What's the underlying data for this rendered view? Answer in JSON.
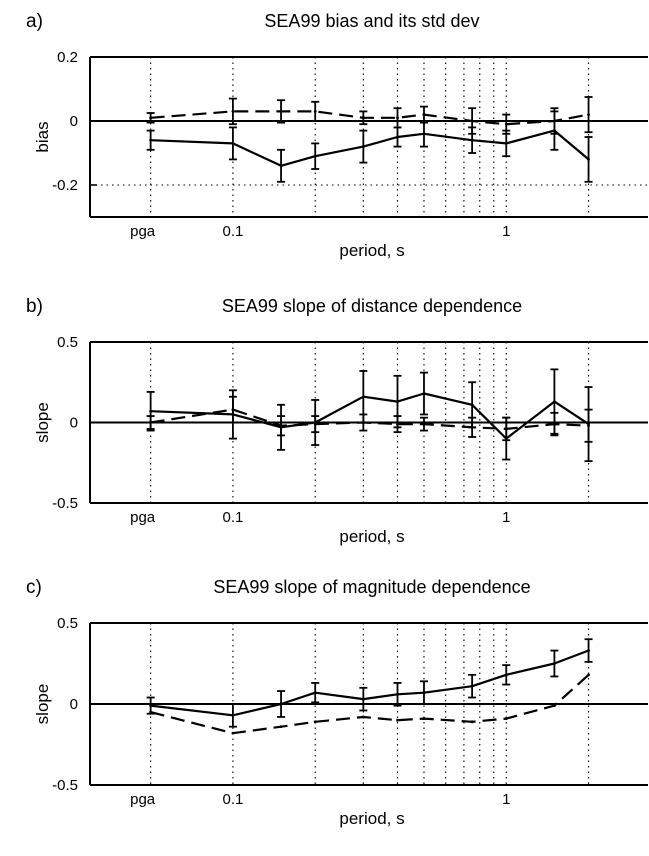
{
  "chart_data": [
    {
      "panel": "a)",
      "type": "line",
      "title": "SEA99 bias and its std dev",
      "xlabel": "period, s",
      "ylabel": "bias",
      "x_scale": "log",
      "xlim": [
        0.03,
        3.3
      ],
      "ylim": [
        -0.3,
        0.2
      ],
      "yticks": [
        0.2,
        0,
        -0.2
      ],
      "ytick_labels": [
        "0.2",
        "0",
        "-0.2"
      ],
      "xtick_labels": [
        "pga",
        "0.1",
        "1"
      ],
      "vertical_grid_x": [
        0.05,
        0.1,
        0.2,
        0.3,
        0.4,
        0.5,
        0.6,
        0.7,
        0.8,
        0.9,
        1.0,
        2.0
      ],
      "horizontal_grid_y": [
        -0.2
      ],
      "x": [
        "pga",
        0.1,
        0.15,
        0.2,
        0.3,
        0.4,
        0.5,
        0.75,
        1.0,
        1.5,
        2.0
      ],
      "series": [
        {
          "style": "solid",
          "values": [
            -0.06,
            -0.07,
            -0.14,
            -0.11,
            -0.08,
            -0.05,
            -0.04,
            -0.06,
            -0.07,
            -0.03,
            -0.12
          ],
          "error": [
            0.03,
            0.05,
            0.05,
            0.04,
            0.05,
            0.03,
            0.04,
            0.04,
            0.04,
            0.06,
            0.07
          ]
        },
        {
          "style": "dashed",
          "values": [
            0.01,
            0.03,
            0.03,
            0.03,
            0.01,
            0.01,
            0.02,
            0.0,
            -0.01,
            0.0,
            0.02
          ],
          "error": [
            0.015,
            0.04,
            0.035,
            0.03,
            0.02,
            0.03,
            0.025,
            0.04,
            0.03,
            0.04,
            0.055
          ]
        }
      ]
    },
    {
      "panel": "b)",
      "type": "line",
      "title": "SEA99 slope of distance dependence",
      "xlabel": "period, s",
      "ylabel": "slope",
      "x_scale": "log",
      "xlim": [
        0.03,
        3.3
      ],
      "ylim": [
        -0.5,
        0.5
      ],
      "yticks": [
        0.5,
        0,
        -0.5
      ],
      "ytick_labels": [
        "0.5",
        "0",
        "-0.5"
      ],
      "xtick_labels": [
        "pga",
        "0.1",
        "1"
      ],
      "vertical_grid_x": [
        0.05,
        0.1,
        0.2,
        0.3,
        0.4,
        0.5,
        0.6,
        0.7,
        0.8,
        0.9,
        1.0,
        2.0
      ],
      "horizontal_grid_y": [],
      "x": [
        "pga",
        0.1,
        0.15,
        0.2,
        0.3,
        0.4,
        0.5,
        0.75,
        1.0,
        1.5,
        2.0
      ],
      "series": [
        {
          "style": "solid",
          "values": [
            0.07,
            0.05,
            -0.03,
            0.0,
            0.16,
            0.13,
            0.18,
            0.11,
            -0.1,
            0.13,
            -0.01
          ],
          "error": [
            0.12,
            0.15,
            0.14,
            0.14,
            0.16,
            0.16,
            0.13,
            0.14,
            0.13,
            0.2,
            0.23
          ]
        },
        {
          "style": "dashed",
          "values": [
            0.0,
            0.08,
            -0.02,
            -0.01,
            0.0,
            -0.01,
            -0.01,
            -0.03,
            -0.04,
            -0.01,
            -0.02
          ],
          "error": [
            0.04,
            0.08,
            0.06,
            0.05,
            0.05,
            0.05,
            0.04,
            0.06,
            0.07,
            0.07,
            0.1
          ]
        }
      ]
    },
    {
      "panel": "c)",
      "type": "line",
      "title": "SEA99 slope of magnitude dependence",
      "xlabel": "period, s",
      "ylabel": "slope",
      "x_scale": "log",
      "xlim": [
        0.03,
        3.3
      ],
      "ylim": [
        -0.5,
        0.5
      ],
      "yticks": [
        0.5,
        0,
        -0.5
      ],
      "ytick_labels": [
        "0.5",
        "0",
        "-0.5"
      ],
      "xtick_labels": [
        "pga",
        "0.1",
        "1"
      ],
      "vertical_grid_x": [
        0.05,
        0.1,
        0.2,
        0.3,
        0.4,
        0.5,
        0.6,
        0.7,
        0.8,
        0.9,
        1.0,
        2.0
      ],
      "horizontal_grid_y": [],
      "x": [
        "pga",
        0.1,
        0.15,
        0.2,
        0.3,
        0.4,
        0.5,
        0.75,
        1.0,
        1.5,
        2.0
      ],
      "series": [
        {
          "style": "solid",
          "values": [
            -0.01,
            -0.07,
            0.0,
            0.07,
            0.03,
            0.06,
            0.07,
            0.11,
            0.18,
            0.25,
            0.33
          ],
          "error": [
            0.05,
            0.07,
            0.08,
            0.06,
            0.07,
            0.07,
            0.07,
            0.07,
            0.06,
            0.08,
            0.07
          ]
        },
        {
          "style": "dashed",
          "values": [
            -0.05,
            -0.18,
            -0.14,
            -0.11,
            -0.08,
            -0.1,
            -0.09,
            -0.11,
            -0.09,
            -0.01,
            0.18
          ]
        }
      ]
    }
  ]
}
